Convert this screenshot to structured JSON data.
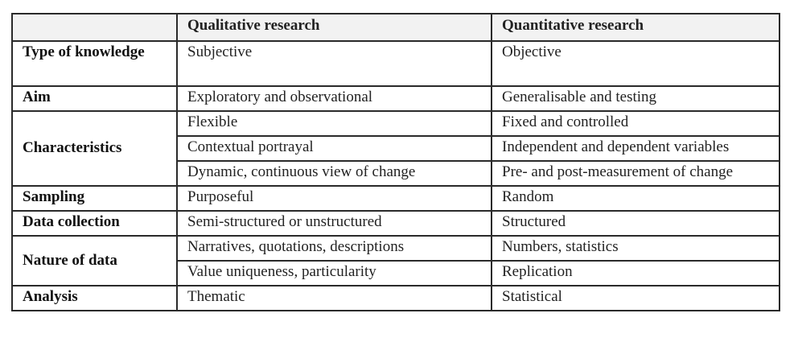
{
  "table": {
    "headers": [
      "",
      "Qualitative research",
      "Quantitative research"
    ],
    "rows": [
      {
        "label": "Type of knowledge",
        "qual": "Subjective",
        "quant": "Objective"
      },
      {
        "label": "Aim",
        "qual": "Exploratory and observational",
        "quant": "Generalisable and testing"
      },
      {
        "label": "Characteristics",
        "sub": [
          {
            "qual": "Flexible",
            "quant": "Fixed and controlled"
          },
          {
            "qual": "Contextual portrayal",
            "quant": "Independent and dependent variables"
          },
          {
            "qual": "Dynamic, continuous view of change",
            "quant": "Pre- and post-measurement of change"
          }
        ]
      },
      {
        "label": "Sampling",
        "qual": "Purposeful",
        "quant": "Random"
      },
      {
        "label": "Data collection",
        "qual": "Semi-structured or unstructured",
        "quant": "Structured"
      },
      {
        "label": "Nature of data",
        "sub": [
          {
            "qual": "Narratives, quotations, descriptions",
            "quant": "Numbers, statistics"
          },
          {
            "qual": "Value uniqueness, particularity",
            "quant": "Replication"
          }
        ]
      },
      {
        "label": "Analysis",
        "qual": "Thematic",
        "quant": "Statistical"
      }
    ]
  }
}
